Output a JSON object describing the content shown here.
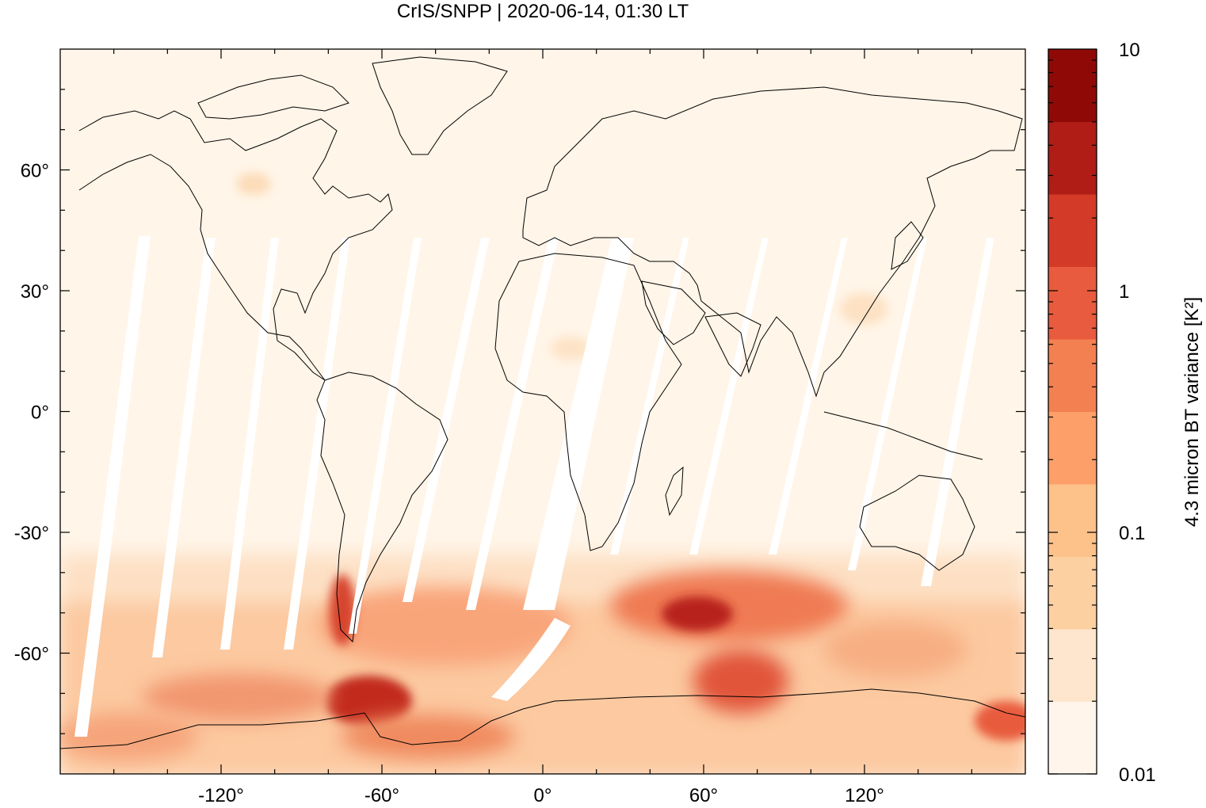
{
  "title": "CrIS/SNPP | 2020-06-14, 01:30 LT",
  "map": {
    "lon_range": [
      -180,
      180
    ],
    "lat_range": [
      -90,
      90
    ],
    "lon_ticks": [
      {
        "value": -120,
        "label": "-120°"
      },
      {
        "value": -60,
        "label": "-60°"
      },
      {
        "value": 0,
        "label": "0°"
      },
      {
        "value": 60,
        "label": "60°"
      },
      {
        "value": 120,
        "label": "120°"
      }
    ],
    "lat_ticks": [
      {
        "value": 60,
        "label": "60°"
      },
      {
        "value": 30,
        "label": "30°"
      },
      {
        "value": 0,
        "label": "0°"
      },
      {
        "value": -30,
        "label": "-30°"
      },
      {
        "value": -60,
        "label": "-60°"
      }
    ],
    "background_color": "#fff5e8",
    "coastline_color": "#000000"
  },
  "colorbar": {
    "title": "4.3 micron BT variance [K²]",
    "scale": "log",
    "range": [
      0.01,
      10
    ],
    "ticks": [
      {
        "value": 10,
        "label": "10"
      },
      {
        "value": 1,
        "label": "1"
      },
      {
        "value": 0.1,
        "label": "0.1"
      },
      {
        "value": 0.01,
        "label": "0.01"
      }
    ],
    "colors": [
      "#fff5eb",
      "#fee6ce",
      "#fdd0a2",
      "#fdc18a",
      "#fd9f68",
      "#f38051",
      "#e85b3e",
      "#d43a28",
      "#b01c16",
      "#8f0a06"
    ]
  }
}
